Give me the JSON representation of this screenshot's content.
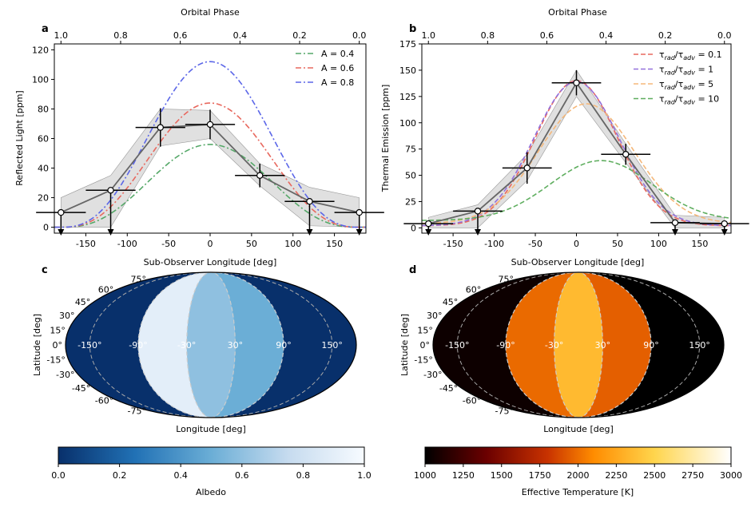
{
  "chart_data": [
    {
      "panel": "a",
      "type": "line",
      "top_axis_label": "Orbital Phase",
      "top_ticks": [
        "1.0",
        "0.8",
        "0.6",
        "0.4",
        "0.2",
        "0.0"
      ],
      "xlabel": "Sub-Observer Longitude [deg]",
      "ylabel": "Reflected Light [ppm]",
      "xlim": [
        -188,
        188
      ],
      "ylim": [
        -4,
        124
      ],
      "xticks": [
        -150,
        -100,
        -50,
        0,
        50,
        100,
        150
      ],
      "yticks": [
        0,
        20,
        40,
        60,
        80,
        100,
        120
      ],
      "legend_position": "top-right",
      "observations": {
        "x": [
          -180,
          -120,
          -60,
          0,
          60,
          120,
          180
        ],
        "y": [
          10,
          25,
          67.5,
          69.5,
          35,
          17.5,
          10
        ],
        "yerr": [
          0,
          0,
          13,
          10,
          8,
          0,
          0
        ],
        "upper_limit": [
          true,
          true,
          false,
          false,
          false,
          true,
          true
        ],
        "band_low": [
          0,
          0,
          55,
          60,
          28,
          1,
          0
        ],
        "band_high": [
          20,
          35,
          80,
          79,
          43,
          27,
          20
        ]
      },
      "series": [
        {
          "name": "A = 0.4",
          "color": "#55a868",
          "peak": 56
        },
        {
          "name": "A = 0.6",
          "color": "#e8685e",
          "peak": 84
        },
        {
          "name": "A = 0.8",
          "color": "#5b66e8",
          "peak": 112
        }
      ]
    },
    {
      "panel": "b",
      "type": "line",
      "top_axis_label": "Orbital Phase",
      "top_ticks": [
        "1.0",
        "0.8",
        "0.6",
        "0.4",
        "0.2",
        "0.0"
      ],
      "xlabel": "Sub-Observer Longitude [deg]",
      "ylabel": "Thermal Emission [ppm]",
      "xlim": [
        -188,
        188
      ],
      "ylim": [
        -5,
        175
      ],
      "xticks": [
        -150,
        -100,
        -50,
        0,
        50,
        100,
        150
      ],
      "yticks": [
        0,
        25,
        50,
        75,
        100,
        125,
        150,
        175
      ],
      "legend_position": "top-right",
      "observations": {
        "x": [
          -180,
          -120,
          -60,
          0,
          60,
          120,
          180
        ],
        "y": [
          4,
          16,
          57,
          138,
          70,
          5,
          4
        ],
        "yerr": [
          0,
          0,
          15,
          12,
          10,
          0,
          0
        ],
        "upper_limit": [
          true,
          true,
          false,
          false,
          false,
          true,
          true
        ],
        "band_low": [
          0,
          0,
          45,
          125,
          62,
          0,
          0
        ],
        "band_high": [
          10,
          22,
          70,
          150,
          80,
          12,
          10
        ]
      },
      "series": [
        {
          "name": "0.1",
          "color": "#e8685e",
          "peak": 140,
          "shift": 0,
          "sigma": 50,
          "base": 2
        },
        {
          "name": "1",
          "color": "#9370db",
          "peak": 139,
          "shift": 0,
          "sigma": 52,
          "base": 2
        },
        {
          "name": "5",
          "color": "#f5b87a",
          "peak": 118,
          "shift": 12,
          "sigma": 58,
          "base": 4
        },
        {
          "name": "10",
          "color": "#5fae5f",
          "peak": 64,
          "shift": 30,
          "sigma": 62,
          "base": 7
        }
      ]
    },
    {
      "panel": "c",
      "type": "heatmap",
      "projection": "mollweide",
      "xlabel": "Longitude [deg]",
      "ylabel": "Latitude [deg]",
      "lon_ticks": [
        "-150°",
        "-90°",
        "-30°",
        "30°",
        "90°",
        "150°"
      ],
      "lat_ticks": [
        "75°",
        "60°",
        "45°",
        "30°",
        "15°",
        "0°",
        "-15°",
        "-30°",
        "-45°",
        "-60°",
        "-75°"
      ],
      "slices": [
        {
          "lon": [
            -180,
            -90
          ],
          "value": 0.0
        },
        {
          "lon": [
            -90,
            -30
          ],
          "value": 0.9
        },
        {
          "lon": [
            -30,
            30
          ],
          "value": 0.6
        },
        {
          "lon": [
            30,
            90
          ],
          "value": 0.5
        },
        {
          "lon": [
            90,
            180
          ],
          "value": 0.0
        }
      ],
      "colorbar": {
        "label": "Albedo",
        "ticks": [
          "0.0",
          "0.2",
          "0.4",
          "0.6",
          "0.8",
          "1.0"
        ],
        "colors": [
          "#08306b",
          "#2171b5",
          "#6baed6",
          "#c6dbef",
          "#f7fbff"
        ]
      }
    },
    {
      "panel": "d",
      "type": "heatmap",
      "projection": "mollweide",
      "xlabel": "Longitude [deg]",
      "ylabel": "Latitude [deg]",
      "lon_ticks": [
        "-150°",
        "-90°",
        "-30°",
        "30°",
        "90°",
        "150°"
      ],
      "lat_ticks": [
        "75°",
        "60°",
        "45°",
        "30°",
        "15°",
        "0°",
        "-15°",
        "-30°",
        "-45°",
        "-60°",
        "-75°"
      ],
      "slices": [
        {
          "lon": [
            -180,
            -90
          ],
          "value": 1050
        },
        {
          "lon": [
            -90,
            -30
          ],
          "value": 2050
        },
        {
          "lon": [
            -30,
            30
          ],
          "value": 2450
        },
        {
          "lon": [
            30,
            90
          ],
          "value": 2000
        },
        {
          "lon": [
            90,
            180
          ],
          "value": 1000
        }
      ],
      "colorbar": {
        "label": "Effective Temperature [K]",
        "ticks": [
          "1000",
          "1250",
          "1500",
          "1750",
          "2000",
          "2250",
          "2500",
          "2750",
          "3000"
        ],
        "colors": [
          "#000000",
          "#6b0000",
          "#c83200",
          "#ff8c00",
          "#ffd54d",
          "#ffffff"
        ]
      }
    }
  ],
  "panel_letters": {
    "a": "a",
    "b": "b",
    "c": "c",
    "d": "d"
  },
  "legend_b_prefix": "τ",
  "legend_b_sub1": "rad",
  "legend_b_sub2": "adv",
  "legend_b_eq": "/τ",
  "legend_b_sep": " = "
}
